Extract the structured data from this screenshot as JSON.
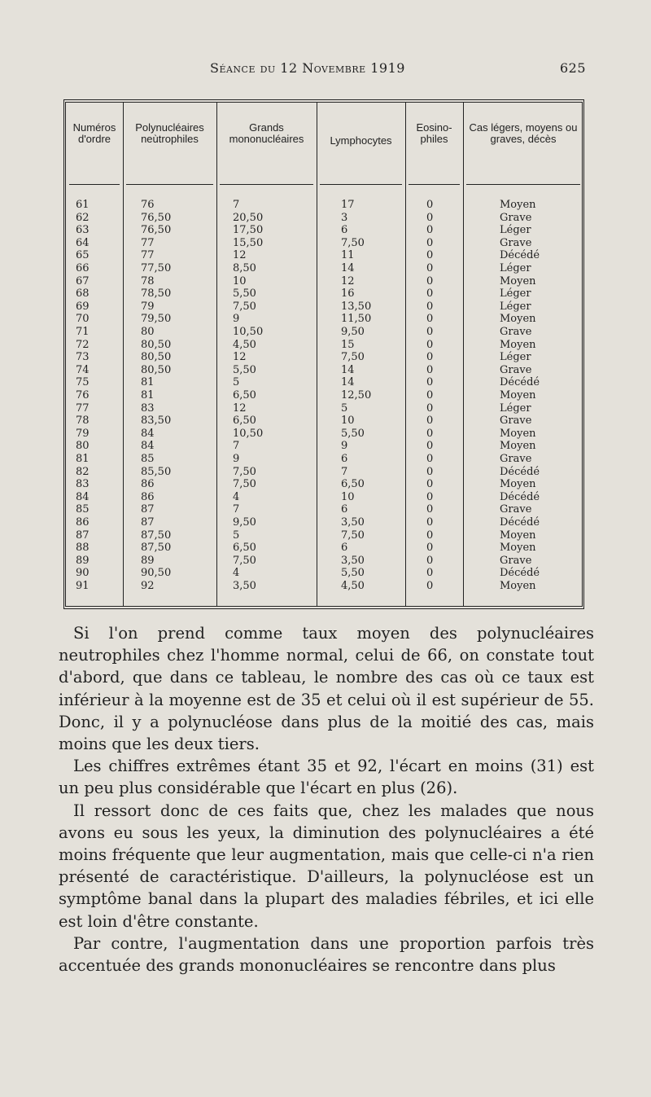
{
  "header": {
    "title": "Séance du 12 Novembre 1919",
    "page_number": "625"
  },
  "table": {
    "columns": [
      "Numéros d'ordre",
      "Polynucléaires neùtrophiles",
      "Grands mononucléaires",
      "Lymphocytes",
      "Eosino-philes",
      "Cas légers, moyens ou graves, décès"
    ],
    "rows": [
      [
        "61",
        "76",
        "7",
        "17",
        "0",
        "Moyen"
      ],
      [
        "62",
        "76,50",
        "20,50",
        "3",
        "0",
        "Grave"
      ],
      [
        "63",
        "76,50",
        "17,50",
        "6",
        "0",
        "Léger"
      ],
      [
        "64",
        "77",
        "15,50",
        "7,50",
        "0",
        "Grave"
      ],
      [
        "65",
        "77",
        "12",
        "11",
        "0",
        "Décédé"
      ],
      [
        "66",
        "77,50",
        "8,50",
        "14",
        "0",
        "Léger"
      ],
      [
        "67",
        "78",
        "10",
        "12",
        "0",
        "Moyen"
      ],
      [
        "68",
        "78,50",
        "5,50",
        "16",
        "0",
        "Léger"
      ],
      [
        "69",
        "79",
        "7,50",
        "13,50",
        "0",
        "Léger"
      ],
      [
        "70",
        "79,50",
        "9",
        "11,50",
        "0",
        "Moyen"
      ],
      [
        "71",
        "80",
        "10,50",
        "9,50",
        "0",
        "Grave"
      ],
      [
        "72",
        "80,50",
        "4,50",
        "15",
        "0",
        "Moyen"
      ],
      [
        "73",
        "80,50",
        "12",
        "7,50",
        "0",
        "Léger"
      ],
      [
        "74",
        "80,50",
        "5,50",
        "14",
        "0",
        "Grave"
      ],
      [
        "75",
        "81",
        "5",
        "14",
        "0",
        "Décédé"
      ],
      [
        "76",
        "81",
        "6,50",
        "12,50",
        "0",
        "Moyen"
      ],
      [
        "77",
        "83",
        "12",
        "5",
        "0",
        "Léger"
      ],
      [
        "78",
        "83,50",
        "6,50",
        "10",
        "0",
        "Grave"
      ],
      [
        "79",
        "84",
        "10,50",
        "5,50",
        "0",
        "Moyen"
      ],
      [
        "80",
        "84",
        "7",
        "9",
        "0",
        "Moyen"
      ],
      [
        "81",
        "85",
        "9",
        "6",
        "0",
        "Grave"
      ],
      [
        "82",
        "85,50",
        "7,50",
        "7",
        "0",
        "Décédé"
      ],
      [
        "83",
        "86",
        "7,50",
        "6,50",
        "0",
        "Moyen"
      ],
      [
        "84",
        "86",
        "4",
        "10",
        "0",
        "Décédé"
      ],
      [
        "85",
        "87",
        "7",
        "6",
        "0",
        "Grave"
      ],
      [
        "86",
        "87",
        "9,50",
        "3,50",
        "0",
        "Décédé"
      ],
      [
        "87",
        "87,50",
        "5",
        "7,50",
        "0",
        "Moyen"
      ],
      [
        "88",
        "87,50",
        "6,50",
        "6",
        "0",
        "Moyen"
      ],
      [
        "89",
        "89",
        "7,50",
        "3,50",
        "0",
        "Grave"
      ],
      [
        "90",
        "90,50",
        "4",
        "5,50",
        "0",
        "Décédé"
      ],
      [
        "91",
        "92",
        "3,50",
        "4,50",
        "0",
        "Moyen"
      ]
    ]
  },
  "paragraphs": [
    "Si l'on prend comme taux moyen des polynucléaires neutrophiles chez l'homme normal, celui de 66, on constate tout d'abord, que dans ce tableau, le nombre des cas où ce taux est inférieur à la moyenne est de 35 et celui où il est supérieur de 55. Donc, il y a polynucléose dans plus de la moitié des cas, mais moins que les deux tiers.",
    "Les chiffres extrêmes étant 35 et 92, l'écart en moins (31) est un peu plus considérable que l'écart en plus (26).",
    "Il ressort donc de ces faits que, chez les malades que nous avons eu sous les yeux, la diminution des polynucléaires a été moins fréquente que leur augmentation, mais que celle-ci n'a rien présenté de caractéristique. D'ailleurs, la polynucléose est un symptôme banal dans la plupart des maladies fébriles, et ici elle est loin d'être constante.",
    "Par contre, l'augmentation dans une proportion parfois très accentuée des grands mononucléaires se rencontre dans plus"
  ]
}
